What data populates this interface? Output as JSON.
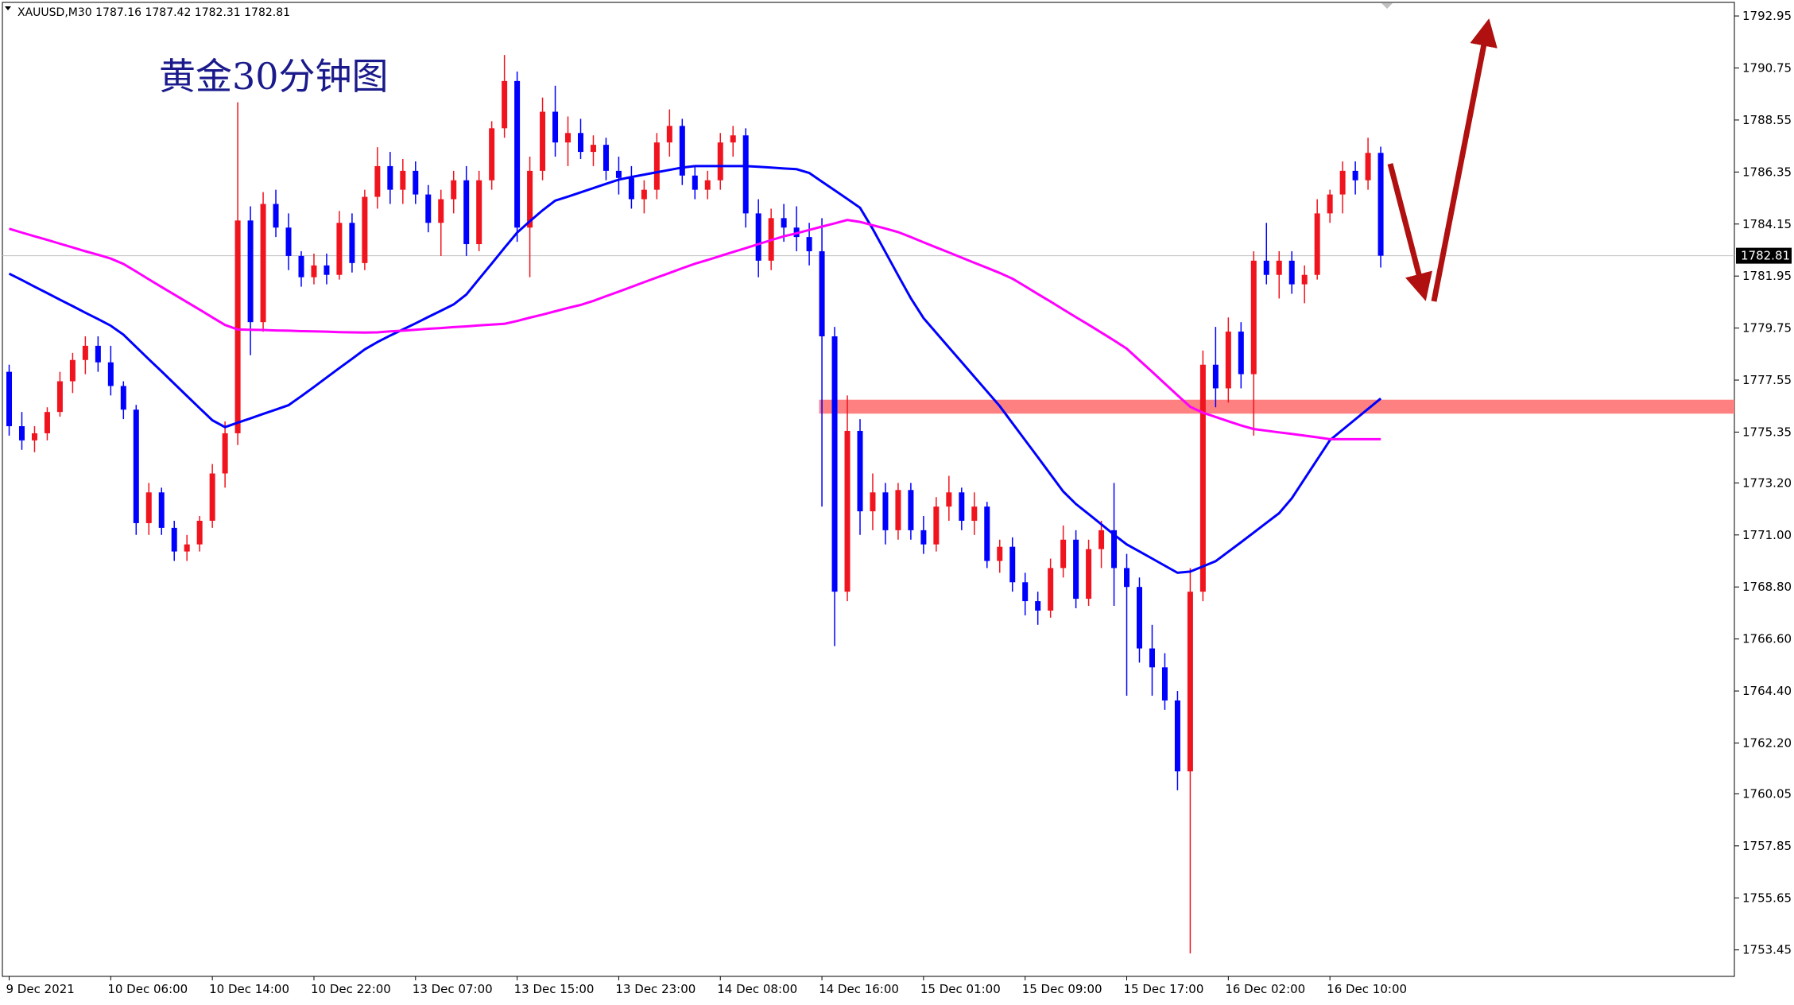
{
  "chart_data": {
    "type": "candlestick",
    "header": "XAUUSD,M30  1787.16 1787.42 1782.31 1782.81",
    "title": "黄金30分钟图",
    "categories": [
      "9 Dec 2021",
      null,
      null,
      null,
      null,
      null,
      null,
      null,
      "10 Dec 06:00",
      null,
      null,
      null,
      null,
      null,
      null,
      null,
      "10 Dec 14:00",
      null,
      null,
      null,
      null,
      null,
      null,
      null,
      "10 Dec 22:00",
      null,
      null,
      null,
      null,
      null,
      null,
      null,
      "13 Dec 07:00",
      null,
      null,
      null,
      null,
      null,
      null,
      null,
      "13 Dec 15:00",
      null,
      null,
      null,
      null,
      null,
      null,
      null,
      "13 Dec 23:00",
      null,
      null,
      null,
      null,
      null,
      null,
      null,
      "14 Dec 08:00",
      null,
      null,
      null,
      null,
      null,
      null,
      null,
      "14 Dec 16:00",
      null,
      null,
      null,
      null,
      null,
      null,
      null,
      "15 Dec 01:00",
      null,
      null,
      null,
      null,
      null,
      null,
      null,
      "15 Dec 09:00",
      null,
      null,
      null,
      null,
      null,
      null,
      null,
      "15 Dec 17:00",
      null,
      null,
      null,
      null,
      null,
      null,
      null,
      "16 Dec 02:00",
      null,
      null,
      null,
      null,
      null,
      null,
      null,
      "16 Dec 10:00",
      null,
      null,
      null,
      null
    ],
    "open": [
      1777.9,
      1775.6,
      1775.0,
      1775.3,
      1776.2,
      1777.5,
      1778.4,
      1779.0,
      1778.3,
      1777.3,
      1776.3,
      1771.5,
      1772.8,
      1771.3,
      1770.3,
      1770.6,
      1771.6,
      1773.6,
      1775.3,
      1784.3,
      1780.0,
      1785.0,
      1784.0,
      1782.8,
      1781.9,
      1782.4,
      1782.0,
      1784.2,
      1782.5,
      1785.3,
      1786.6,
      1785.6,
      1786.4,
      1785.4,
      1784.2,
      1785.2,
      1786.0,
      1783.3,
      1786.0,
      1788.2,
      1790.2,
      1784.0,
      1786.4,
      1788.9,
      1787.6,
      1788.0,
      1787.2,
      1787.5,
      1786.4,
      1786.1,
      1785.2,
      1785.6,
      1787.6,
      1788.3,
      1786.2,
      1785.6,
      1786.0,
      1787.6,
      1787.9,
      1784.6,
      1782.6,
      1784.4,
      1784.0,
      1783.6,
      1783.0,
      1779.4,
      1768.6,
      1775.4,
      1772.0,
      1772.8,
      1771.2,
      1772.9,
      1771.2,
      1770.6,
      1772.2,
      1772.8,
      1771.6,
      1772.2,
      1769.9,
      1770.5,
      1769.0,
      1768.2,
      1767.8,
      1769.6,
      1770.8,
      1768.3,
      1770.4,
      1771.2,
      1769.6,
      1768.8,
      1766.2,
      1765.4,
      1764.0,
      1761.0,
      1768.6,
      1778.2,
      1777.2,
      1779.6,
      1777.8,
      1782.6,
      1782.0,
      1782.6,
      1781.6,
      1782.0,
      1784.6,
      1785.4,
      1786.4,
      1786.0,
      1787.16
    ],
    "high": [
      1778.2,
      1776.2,
      1775.6,
      1776.4,
      1777.9,
      1778.7,
      1779.4,
      1779.4,
      1779.0,
      1777.5,
      1776.5,
      1773.2,
      1773.0,
      1771.6,
      1771.0,
      1771.8,
      1774.0,
      1775.8,
      1789.3,
      1784.9,
      1785.5,
      1785.6,
      1784.6,
      1783.0,
      1782.9,
      1782.9,
      1784.7,
      1784.6,
      1785.6,
      1787.4,
      1787.2,
      1786.9,
      1786.8,
      1785.8,
      1785.6,
      1786.4,
      1786.6,
      1786.4,
      1788.5,
      1791.3,
      1790.6,
      1787.0,
      1789.5,
      1790.0,
      1788.7,
      1788.6,
      1787.9,
      1787.8,
      1787.0,
      1786.6,
      1786.0,
      1788.0,
      1789.0,
      1788.6,
      1786.6,
      1786.4,
      1788.0,
      1788.3,
      1788.2,
      1785.2,
      1784.8,
      1785.0,
      1784.9,
      1784.2,
      1784.4,
      1779.8,
      1776.9,
      1775.9,
      1773.6,
      1773.2,
      1773.2,
      1773.2,
      1771.8,
      1772.6,
      1773.5,
      1773.0,
      1772.8,
      1772.4,
      1770.8,
      1770.9,
      1769.4,
      1768.6,
      1770.0,
      1771.4,
      1771.2,
      1770.8,
      1771.6,
      1773.2,
      1770.2,
      1769.2,
      1767.2,
      1766.0,
      1764.4,
      1769.6,
      1778.8,
      1779.8,
      1780.2,
      1780.0,
      1783.0,
      1784.2,
      1783.0,
      1783.0,
      1782.4,
      1785.2,
      1785.6,
      1786.8,
      1786.8,
      1787.8,
      1787.42
    ],
    "low": [
      1775.2,
      1774.6,
      1774.5,
      1775.0,
      1776.0,
      1777.0,
      1777.8,
      1777.9,
      1776.9,
      1775.9,
      1771.0,
      1771.0,
      1771.0,
      1769.9,
      1769.9,
      1770.3,
      1771.3,
      1773.0,
      1774.8,
      1778.6,
      1779.6,
      1783.6,
      1782.2,
      1781.5,
      1781.6,
      1781.6,
      1781.8,
      1782.1,
      1782.2,
      1784.8,
      1785.0,
      1785.0,
      1785.0,
      1783.8,
      1782.8,
      1784.6,
      1782.8,
      1783.0,
      1785.6,
      1787.8,
      1783.4,
      1781.9,
      1786.0,
      1787.0,
      1786.6,
      1786.9,
      1786.6,
      1786.0,
      1785.4,
      1784.8,
      1784.6,
      1785.2,
      1787.0,
      1785.8,
      1785.2,
      1785.2,
      1785.6,
      1787.0,
      1784.0,
      1781.9,
      1782.2,
      1783.4,
      1783.0,
      1782.4,
      1772.2,
      1766.3,
      1768.2,
      1771.0,
      1771.2,
      1770.6,
      1770.8,
      1770.8,
      1770.2,
      1770.3,
      1771.6,
      1771.2,
      1771.0,
      1769.6,
      1769.4,
      1768.6,
      1767.6,
      1767.2,
      1767.5,
      1769.2,
      1767.9,
      1768.0,
      1769.6,
      1768.0,
      1764.2,
      1765.6,
      1764.2,
      1763.6,
      1760.2,
      1753.3,
      1768.2,
      1776.4,
      1776.6,
      1777.2,
      1775.2,
      1781.6,
      1781.0,
      1781.2,
      1780.8,
      1781.8,
      1784.2,
      1784.6,
      1785.4,
      1785.6,
      1782.31
    ],
    "close": [
      1775.6,
      1775.0,
      1775.3,
      1776.2,
      1777.5,
      1778.4,
      1779.0,
      1778.3,
      1777.3,
      1776.3,
      1771.5,
      1772.8,
      1771.3,
      1770.3,
      1770.6,
      1771.6,
      1773.6,
      1775.3,
      1784.3,
      1780.0,
      1785.0,
      1784.0,
      1782.8,
      1781.9,
      1782.4,
      1782.0,
      1784.2,
      1782.5,
      1785.3,
      1786.6,
      1785.6,
      1786.4,
      1785.4,
      1784.2,
      1785.2,
      1786.0,
      1783.3,
      1786.0,
      1788.2,
      1790.2,
      1784.0,
      1786.4,
      1788.9,
      1787.6,
      1788.0,
      1787.2,
      1787.5,
      1786.4,
      1786.1,
      1785.2,
      1785.6,
      1787.6,
      1788.3,
      1786.2,
      1785.6,
      1786.0,
      1787.6,
      1787.9,
      1784.6,
      1782.6,
      1784.4,
      1784.0,
      1783.6,
      1783.0,
      1779.4,
      1768.6,
      1775.4,
      1772.0,
      1772.8,
      1771.2,
      1772.9,
      1771.2,
      1770.6,
      1772.2,
      1772.8,
      1771.6,
      1772.2,
      1769.9,
      1770.5,
      1769.0,
      1768.2,
      1767.8,
      1769.6,
      1770.8,
      1768.3,
      1770.4,
      1771.2,
      1769.6,
      1768.8,
      1766.2,
      1765.4,
      1764.0,
      1761.0,
      1768.6,
      1778.2,
      1777.2,
      1779.6,
      1777.8,
      1782.6,
      1782.0,
      1782.6,
      1781.6,
      1782.0,
      1784.6,
      1785.4,
      1786.4,
      1786.0,
      1787.16,
      1782.81
    ],
    "up_color": "#f0141e",
    "down_color": "#0000ff",
    "series": [
      {
        "color": "#0000ff",
        "values": [
          1782.05,
          1781.78,
          1781.5,
          1781.23,
          1780.95,
          1780.68,
          1780.4,
          1780.13,
          1779.85,
          1779.47,
          1778.95,
          1778.43,
          1777.92,
          1777.4,
          1776.88,
          1776.36,
          1775.85,
          1775.56,
          1775.75,
          1775.93,
          1776.12,
          1776.3,
          1776.49,
          1776.87,
          1777.26,
          1777.66,
          1778.06,
          1778.45,
          1778.85,
          1779.16,
          1779.43,
          1779.69,
          1779.95,
          1780.22,
          1780.48,
          1780.75,
          1781.17,
          1781.83,
          1782.48,
          1783.14,
          1783.79,
          1784.27,
          1784.73,
          1785.14,
          1785.31,
          1785.49,
          1785.67,
          1785.85,
          1786.03,
          1786.14,
          1786.24,
          1786.34,
          1786.44,
          1786.54,
          1786.6,
          1786.6,
          1786.6,
          1786.6,
          1786.6,
          1786.57,
          1786.54,
          1786.5,
          1786.47,
          1786.31,
          1785.94,
          1785.58,
          1785.21,
          1784.84,
          1783.94,
          1782.96,
          1781.98,
          1781.01,
          1780.17,
          1779.55,
          1778.93,
          1778.31,
          1777.69,
          1777.07,
          1776.45,
          1775.73,
          1775.01,
          1774.29,
          1773.56,
          1772.84,
          1772.31,
          1771.88,
          1771.45,
          1771.01,
          1770.6,
          1770.3,
          1770.0,
          1769.7,
          1769.4,
          1769.45,
          1769.67,
          1769.89,
          1770.29,
          1770.69,
          1771.1,
          1771.51,
          1771.92,
          1772.55,
          1773.37,
          1774.19,
          1775.01,
          1775.45,
          1775.89,
          1776.33,
          1776.77
        ]
      },
      {
        "color": "#ff00ff",
        "values": [
          1783.95,
          1783.79,
          1783.63,
          1783.48,
          1783.32,
          1783.16,
          1783.0,
          1782.85,
          1782.69,
          1782.46,
          1782.14,
          1781.81,
          1781.49,
          1781.17,
          1780.85,
          1780.53,
          1780.2,
          1779.88,
          1779.69,
          1779.68,
          1779.67,
          1779.65,
          1779.64,
          1779.62,
          1779.61,
          1779.6,
          1779.58,
          1779.57,
          1779.56,
          1779.57,
          1779.61,
          1779.64,
          1779.68,
          1779.72,
          1779.75,
          1779.79,
          1779.82,
          1779.86,
          1779.9,
          1779.93,
          1780.05,
          1780.19,
          1780.32,
          1780.46,
          1780.6,
          1780.73,
          1780.9,
          1781.1,
          1781.29,
          1781.49,
          1781.69,
          1781.89,
          1782.08,
          1782.28,
          1782.47,
          1782.63,
          1782.8,
          1782.97,
          1783.13,
          1783.3,
          1783.47,
          1783.63,
          1783.76,
          1783.9,
          1784.04,
          1784.18,
          1784.32,
          1784.24,
          1784.1,
          1783.96,
          1783.81,
          1783.6,
          1783.38,
          1783.16,
          1782.95,
          1782.73,
          1782.51,
          1782.3,
          1782.08,
          1781.84,
          1781.52,
          1781.19,
          1780.87,
          1780.54,
          1780.21,
          1779.89,
          1779.56,
          1779.23,
          1778.88,
          1778.39,
          1777.9,
          1777.4,
          1776.91,
          1776.42,
          1776.17,
          1775.99,
          1775.81,
          1775.63,
          1775.48,
          1775.41,
          1775.34,
          1775.27,
          1775.2,
          1775.13,
          1775.05,
          1775.05,
          1775.05,
          1775.05,
          1775.05
        ]
      }
    ],
    "zone": [
      1776.13,
      1776.72
    ],
    "zone_color": "#ff8080",
    "last_price": 1782.81,
    "ylim": [
      1752.33,
      1793.39
    ],
    "yticks": [
      1792.95,
      1790.75,
      1788.55,
      1786.35,
      1784.15,
      1781.95,
      1779.75,
      1777.55,
      1775.35,
      {
        "value": 1773.2,
        "label": "1773.20"
      },
      {
        "value": 1771,
        "label": "1771.00"
      },
      {
        "value": 1768.8,
        "label": "1768.80"
      },
      {
        "value": 1766.6,
        "label": "1766.60"
      },
      {
        "value": 1764.4,
        "label": "1764.40"
      },
      {
        "value": 1762.2,
        "label": "1762.20"
      },
      1760.05,
      1757.85,
      1755.65,
      1753.45
    ]
  }
}
